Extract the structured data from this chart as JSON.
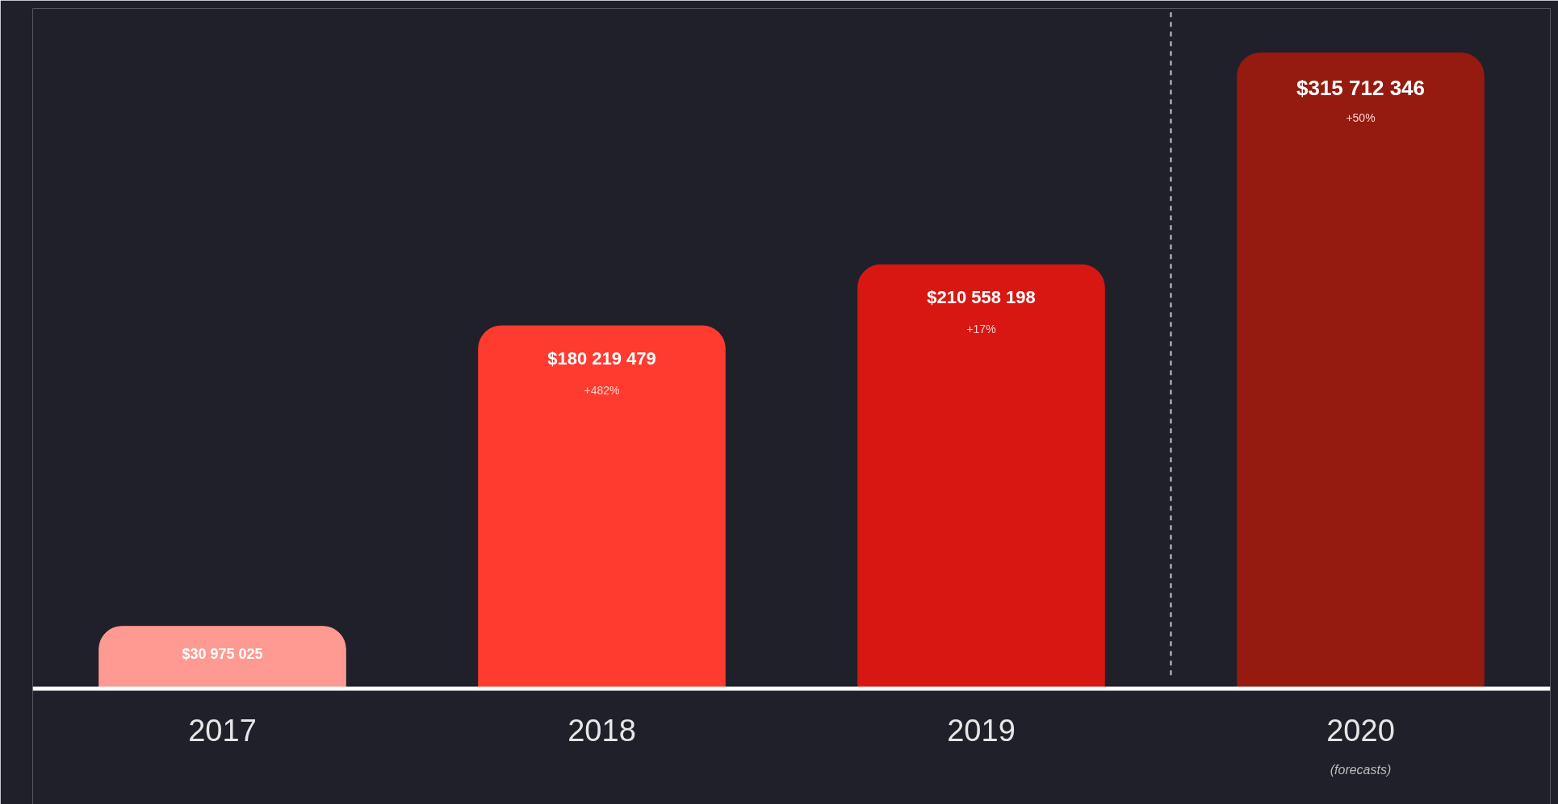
{
  "chart_data": {
    "type": "bar",
    "categories": [
      "2017",
      "2018",
      "2019",
      "2020"
    ],
    "values": [
      30975025,
      180219479,
      210558198,
      315712346
    ],
    "colors": [
      "#fe9a92",
      "#ff3a2f",
      "#d81712",
      "#951a10"
    ],
    "value_labels": [
      "$30 975 025",
      "$180 219 479",
      "$210 558 198",
      "$315 712 346"
    ],
    "annotations": [
      "+482%",
      "+17%",
      "+50%",
      "(forecasts)"
    ],
    "tick_labels": "x",
    "grid": false
  }
}
